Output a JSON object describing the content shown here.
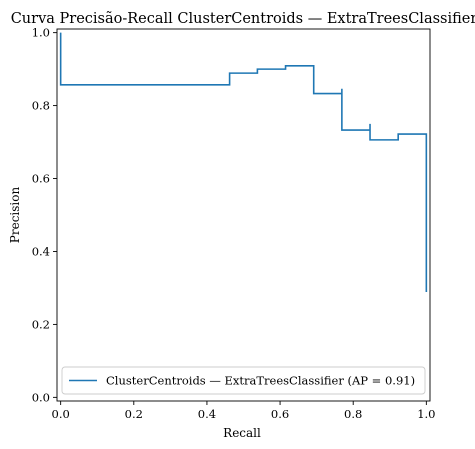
{
  "chart_data": {
    "type": "line",
    "title": "Curva Precisão-Recall ClusterCentroids — ExtraTreesClassifier",
    "xlabel": "Recall",
    "ylabel": "Precision",
    "xlim": [
      -0.01,
      1.01
    ],
    "ylim": [
      -0.01,
      1.01
    ],
    "xticks": [
      0.0,
      0.2,
      0.4,
      0.6,
      0.8,
      1.0
    ],
    "yticks": [
      0.0,
      0.2,
      0.4,
      0.6,
      0.8,
      1.0
    ],
    "xtick_labels": [
      "0.0",
      "0.2",
      "0.4",
      "0.6",
      "0.8",
      "1.0"
    ],
    "ytick_labels": [
      "0.0",
      "0.2",
      "0.4",
      "0.6",
      "0.8",
      "1.0"
    ],
    "grid": false,
    "legend_position": "lower-right",
    "series": [
      {
        "name": "ClusterCentroids — ExtraTreesClassifier (AP = 0.91)",
        "color": "#1f77b4",
        "drawstyle": "steps-post",
        "recall": [
          1.0,
          1.0,
          0.923,
          0.923,
          0.846,
          0.846,
          0.769,
          0.769,
          0.692,
          0.615,
          0.538,
          0.462,
          0.462,
          0.0
        ],
        "precision": [
          0.289,
          0.722,
          0.722,
          0.706,
          0.75,
          0.733,
          0.846,
          0.833,
          0.909,
          0.9,
          0.889,
          0.875,
          0.857,
          1.0
        ]
      }
    ]
  }
}
